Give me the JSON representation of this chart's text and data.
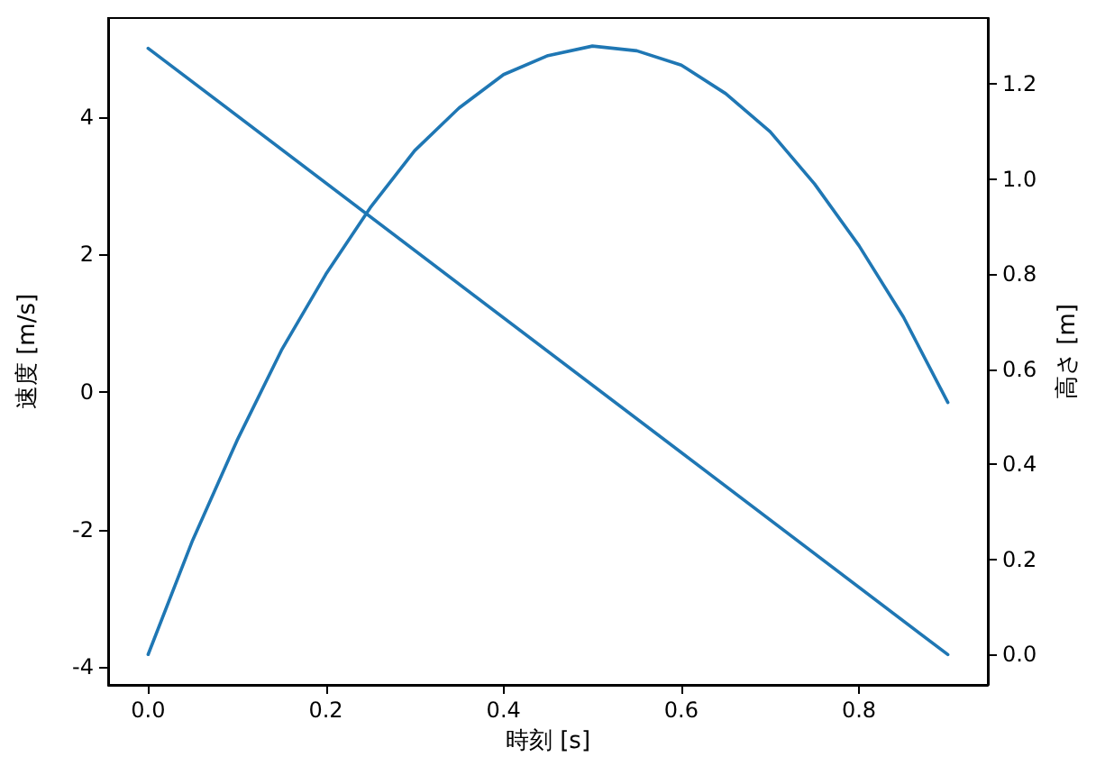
{
  "chart_data": {
    "type": "line",
    "xlabel": "時刻 [s]",
    "ylabel": "速度 [m/s]",
    "y2label": "高さ [m]",
    "xlim": [
      -0.045,
      0.945
    ],
    "xticks": [
      {
        "value": 0,
        "label": "0.0"
      },
      {
        "value": 0.2,
        "label": "0.2"
      },
      {
        "value": 0.4,
        "label": "0.4"
      },
      {
        "value": 0.6,
        "label": "0.6"
      },
      {
        "value": 0.8,
        "label": "0.8"
      }
    ],
    "ylim": [
      -4.26,
      5.44
    ],
    "yticks": [
      -4,
      -2,
      0,
      2,
      4
    ],
    "y2lim": [
      -0.064,
      1.339
    ],
    "y2ticks": [
      {
        "value": 0,
        "label": "0.0"
      },
      {
        "value": 0.2,
        "label": "0.2"
      },
      {
        "value": 0.4,
        "label": "0.4"
      },
      {
        "value": 0.6,
        "label": "0.6"
      },
      {
        "value": 0.8,
        "label": "0.8"
      },
      {
        "value": 1.0,
        "label": "1.0"
      },
      {
        "value": 1.2,
        "label": "1.2"
      }
    ],
    "marker": "none",
    "line_style": "solid",
    "series": [
      {
        "color": "#1f77b4",
        "axis": "y",
        "x": [
          0,
          0.9
        ],
        "values": [
          5,
          -3.82
        ]
      },
      {
        "color": "#1f77b4",
        "axis": "y2",
        "x": [
          0,
          0.05,
          0.1,
          0.15,
          0.2,
          0.25,
          0.3,
          0.35,
          0.4,
          0.45,
          0.5,
          0.55,
          0.6,
          0.65,
          0.7,
          0.75,
          0.8,
          0.85,
          0.9
        ],
        "values": [
          0,
          0.24,
          0.45,
          0.64,
          0.8,
          0.94,
          1.06,
          1.15,
          1.22,
          1.26,
          1.28,
          1.27,
          1.24,
          1.18,
          1.1,
          0.99,
          0.86,
          0.71,
          0.53
        ]
      }
    ]
  }
}
